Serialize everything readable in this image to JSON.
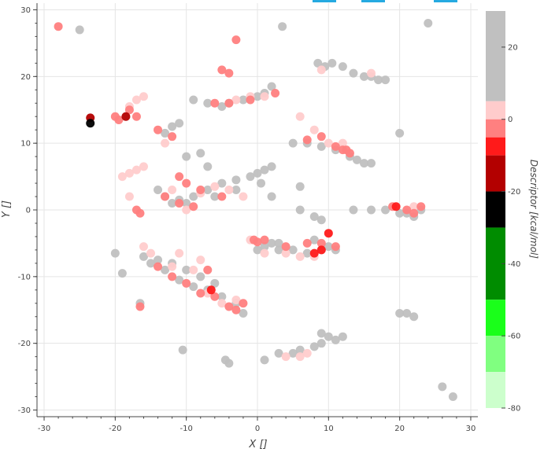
{
  "chart_data": {
    "type": "scatter",
    "title": "",
    "xlabel": "X []",
    "ylabel": "Y []",
    "xlim": [
      -31,
      31
    ],
    "ylim": [
      -31,
      31
    ],
    "xticks": [
      "-30",
      "-20",
      "-10",
      "0",
      "10",
      "20",
      "30"
    ],
    "yticks": [
      "30",
      "20",
      "10",
      "0",
      "-10",
      "-20",
      "-30"
    ],
    "grid": true,
    "colorbar": {
      "label": "Descriptor [kcal/mol]",
      "range": [
        -80,
        30
      ],
      "ticks": [
        "20",
        "0",
        "-20",
        "-40",
        "-60",
        "-80"
      ],
      "bins": [
        {
          "from": 5,
          "to": 30,
          "color": "#c0c0c0"
        },
        {
          "from": 0,
          "to": 5,
          "color": "#ffcccc"
        },
        {
          "from": -5,
          "to": 0,
          "color": "#ff8080"
        },
        {
          "from": -10,
          "to": -5,
          "color": "#ff1a1a"
        },
        {
          "from": -20,
          "to": -10,
          "color": "#b30000"
        },
        {
          "from": -30,
          "to": -20,
          "color": "#000000"
        },
        {
          "from": -50,
          "to": -30,
          "color": "#008c00"
        },
        {
          "from": -60,
          "to": -50,
          "color": "#1aff1a"
        },
        {
          "from": -70,
          "to": -60,
          "color": "#80ff80"
        },
        {
          "from": -80,
          "to": -70,
          "color": "#ccffcc"
        }
      ]
    },
    "series": [
      {
        "color": "#c0c0c0",
        "points": [
          [
            -25,
            27
          ],
          [
            3.5,
            27.5
          ],
          [
            24,
            28
          ],
          [
            8.5,
            22
          ],
          [
            9.5,
            21.5
          ],
          [
            10.5,
            22
          ],
          [
            12,
            21.5
          ],
          [
            13.5,
            20.5
          ],
          [
            15,
            20
          ],
          [
            16,
            20
          ],
          [
            17,
            19.5
          ],
          [
            18,
            19.5
          ],
          [
            -5,
            15.5
          ],
          [
            -4,
            16
          ],
          [
            -2,
            16.5
          ],
          [
            0,
            17
          ],
          [
            1,
            17.5
          ],
          [
            2,
            18.5
          ],
          [
            -9,
            16.5
          ],
          [
            -7,
            16
          ],
          [
            -13,
            11.5
          ],
          [
            -12,
            12.5
          ],
          [
            -11,
            13
          ],
          [
            5,
            10
          ],
          [
            7,
            10
          ],
          [
            9,
            9.5
          ],
          [
            11,
            9
          ],
          [
            13,
            8
          ],
          [
            14,
            7.5
          ],
          [
            15,
            7
          ],
          [
            16,
            7
          ],
          [
            20,
            11.5
          ],
          [
            -8,
            8.5
          ],
          [
            -10,
            8
          ],
          [
            -7,
            6.5
          ],
          [
            -14,
            3
          ],
          [
            -13,
            2
          ],
          [
            -11,
            1.5
          ],
          [
            -9,
            2
          ],
          [
            -7,
            3
          ],
          [
            -5,
            4
          ],
          [
            -3,
            4.5
          ],
          [
            -1,
            5
          ],
          [
            0,
            5.5
          ],
          [
            1,
            6
          ],
          [
            2,
            6.5
          ],
          [
            -12,
            1
          ],
          [
            -10,
            1
          ],
          [
            -6,
            2
          ],
          [
            -3,
            3
          ],
          [
            0.5,
            4
          ],
          [
            2,
            2
          ],
          [
            6,
            3.5
          ],
          [
            6,
            0
          ],
          [
            8,
            -1
          ],
          [
            9,
            -1.5
          ],
          [
            13.5,
            0
          ],
          [
            16,
            0
          ],
          [
            18,
            0
          ],
          [
            20,
            -0.5
          ],
          [
            21,
            -0.5
          ],
          [
            22,
            -1
          ],
          [
            23,
            0
          ],
          [
            -20,
            -6.5
          ],
          [
            -19,
            -9.5
          ],
          [
            -16,
            -7
          ],
          [
            -14,
            -7.5
          ],
          [
            -12,
            -8
          ],
          [
            -10,
            -9
          ],
          [
            -8,
            -10
          ],
          [
            -6,
            -11
          ],
          [
            -15,
            -8
          ],
          [
            -13,
            -9
          ],
          [
            -11,
            -10.5
          ],
          [
            -9,
            -11.5
          ],
          [
            -7,
            -12
          ],
          [
            -5,
            -13
          ],
          [
            -3,
            -14
          ],
          [
            -2,
            -15.5
          ],
          [
            -16.5,
            -14
          ],
          [
            -10.5,
            -21
          ],
          [
            -4.5,
            -22.5
          ],
          [
            -4,
            -23
          ],
          [
            0,
            -6
          ],
          [
            1,
            -5.5
          ],
          [
            2,
            -5
          ],
          [
            3,
            -6
          ],
          [
            5,
            -6
          ],
          [
            7,
            -6.5
          ],
          [
            9,
            -6
          ],
          [
            10,
            -5.5
          ],
          [
            11,
            -6
          ],
          [
            3,
            -5
          ],
          [
            8,
            -4.5
          ],
          [
            20,
            -15.5
          ],
          [
            21,
            -15.5
          ],
          [
            22,
            -16
          ],
          [
            9,
            -18.5
          ],
          [
            10,
            -19
          ],
          [
            11,
            -19.5
          ],
          [
            12,
            -19
          ],
          [
            9,
            -20
          ],
          [
            8,
            -20.5
          ],
          [
            6,
            -21
          ],
          [
            5,
            -21.5
          ],
          [
            3,
            -21.5
          ],
          [
            1,
            -22.5
          ],
          [
            26,
            -26.5
          ],
          [
            27.5,
            -28
          ]
        ]
      },
      {
        "color": "#ffcccc",
        "points": [
          [
            -17,
            16.5
          ],
          [
            -18,
            15.5
          ],
          [
            -16,
            17
          ],
          [
            -3,
            16.5
          ],
          [
            -1,
            17
          ],
          [
            1,
            17
          ],
          [
            6,
            14
          ],
          [
            8,
            12
          ],
          [
            10,
            10
          ],
          [
            12,
            10
          ],
          [
            -18,
            5.5
          ],
          [
            -17,
            6
          ],
          [
            -16,
            6.5
          ],
          [
            -19,
            5
          ],
          [
            -12,
            3
          ],
          [
            -8,
            2.5
          ],
          [
            -6,
            3.5
          ],
          [
            -4,
            3
          ],
          [
            -2,
            2
          ],
          [
            -10,
            0
          ],
          [
            -18,
            2
          ],
          [
            22,
            0.5
          ],
          [
            -16,
            -5.5
          ],
          [
            -15,
            -6.5
          ],
          [
            -12,
            -8.5
          ],
          [
            -9,
            -9
          ],
          [
            -7,
            -12.5
          ],
          [
            -5,
            -14
          ],
          [
            -3,
            -13.5
          ],
          [
            1,
            -6.5
          ],
          [
            4,
            -6.5
          ],
          [
            6,
            -7
          ],
          [
            8,
            -7
          ],
          [
            -1,
            -4.5
          ],
          [
            4,
            -22
          ],
          [
            6,
            -22
          ],
          [
            7,
            -21.5
          ],
          [
            -11,
            -6.5
          ],
          [
            -8,
            -7.5
          ],
          [
            9,
            21
          ],
          [
            16,
            20.5
          ],
          [
            -13,
            10
          ]
        ]
      },
      {
        "color": "#ff8080",
        "points": [
          [
            -28,
            27.5
          ],
          [
            -3,
            25.5
          ],
          [
            -5,
            21
          ],
          [
            -4,
            20.5
          ],
          [
            -18,
            15
          ],
          [
            -17,
            14
          ],
          [
            -20,
            14
          ],
          [
            -19.5,
            13.5
          ],
          [
            -12,
            11
          ],
          [
            -6,
            16
          ],
          [
            -4,
            16
          ],
          [
            -1,
            16.5
          ],
          [
            2.5,
            17.5
          ],
          [
            7,
            10.5
          ],
          [
            9,
            11
          ],
          [
            11,
            9.5
          ],
          [
            12,
            9
          ],
          [
            13,
            8.5
          ],
          [
            -11,
            5
          ],
          [
            -10,
            4
          ],
          [
            -8,
            3
          ],
          [
            -5,
            2
          ],
          [
            -13,
            2
          ],
          [
            -11,
            1
          ],
          [
            -9,
            0.5
          ],
          [
            -16.5,
            -0.5
          ],
          [
            -17,
            0
          ],
          [
            19,
            0.5
          ],
          [
            21,
            0
          ],
          [
            22,
            -0.5
          ],
          [
            23,
            0.5
          ],
          [
            -14,
            -8.5
          ],
          [
            -12,
            -10
          ],
          [
            -10,
            -11
          ],
          [
            -8,
            -12.5
          ],
          [
            -6,
            -13
          ],
          [
            -4,
            -14.5
          ],
          [
            -3,
            -15
          ],
          [
            -2,
            -14
          ],
          [
            -0.5,
            -4.5
          ],
          [
            1,
            -4.5
          ],
          [
            4,
            -5.5
          ],
          [
            7,
            -5
          ],
          [
            9,
            -5
          ],
          [
            11,
            -5.5
          ],
          [
            -16.5,
            -14.5
          ],
          [
            -14,
            12
          ],
          [
            -7,
            -9
          ],
          [
            0,
            -4.8
          ],
          [
            12.5,
            9
          ]
        ]
      },
      {
        "color": "#ff1a1a",
        "points": [
          [
            -6.5,
            -12
          ],
          [
            8,
            -6.5
          ],
          [
            9,
            -6
          ],
          [
            10,
            -3.5
          ],
          [
            19.5,
            0.5
          ]
        ]
      },
      {
        "color": "#b30000",
        "points": [
          [
            -23.5,
            13.8
          ],
          [
            -18.5,
            14
          ]
        ]
      },
      {
        "color": "#000000",
        "points": [
          [
            -23.5,
            13
          ]
        ]
      }
    ]
  }
}
